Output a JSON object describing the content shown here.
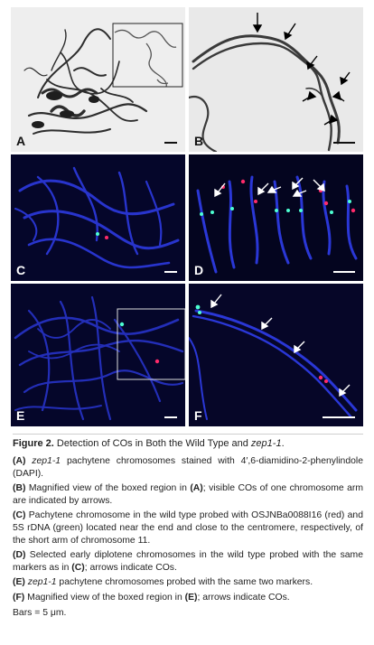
{
  "panels": {
    "A": {
      "label": "A"
    },
    "B": {
      "label": "B"
    },
    "C": {
      "label": "C"
    },
    "D": {
      "label": "D"
    },
    "E": {
      "label": "E"
    },
    "F": {
      "label": "F"
    }
  },
  "caption": {
    "title_bold": "Figure 2.",
    "title_rest_1": " Detection of COs in Both the Wild Type and ",
    "title_ital": "zep1-1",
    "title_rest_2": ".",
    "a_ref": "(A)",
    "a_ital": " zep1-1",
    "a_text": " pachytene chromosomes stained with 4′,6-diamidino-2-phenylindole (DAPI).",
    "b_ref": "(B)",
    "b_text_1": " Magnified view of the boxed region in ",
    "b_ref2": "(A)",
    "b_text_2": "; visible COs of one chromosome arm are indicated by arrows.",
    "c_ref": "(C)",
    "c_text": " Pachytene chromosome in the wild type probed with OSJNBa0088I16 (red) and 5S rDNA (green) located near the end and close to the centromere, respectively, of the short arm of chromosome 11.",
    "d_ref": "(D)",
    "d_text_1": " Selected early diplotene chromosomes in the wild type probed with the same markers as in ",
    "d_ref2": "(C)",
    "d_text_2": "; arrows indicate COs.",
    "e_ref": "(E)",
    "e_ital": " zep1-1",
    "e_text": " pachytene chromosomes probed with the same two markers.",
    "f_ref": "(F)",
    "f_text_1": " Magnified view of the boxed region in ",
    "f_ref2": "(E)",
    "f_text_2": "; arrows indicate COs.",
    "bars": "Bars = 5 μm."
  },
  "colors": {
    "dapi_bg": "#05062a",
    "dapi_chrom": "#2a37d6",
    "probe_red": "#ff2a6a",
    "probe_green": "#4dffd2",
    "gray_bg": "#e9e9e9"
  }
}
